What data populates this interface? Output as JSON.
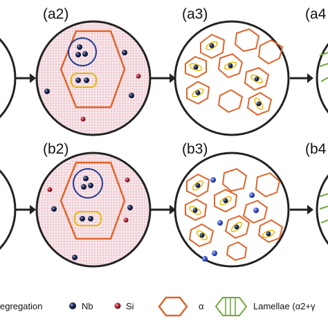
{
  "panels": {
    "a2": "(a2)",
    "a3": "(a3)",
    "a4": "(a4",
    "b2": "(b2)",
    "b3": "(b3)",
    "b4": "(b4"
  },
  "legend": {
    "segregation": "egregation",
    "nb": "Nb",
    "si": "Si",
    "alpha": "α",
    "lamellae": "Lamellae (α2+γ"
  },
  "colors": {
    "grain_boundary": "#e0642a",
    "nb_atom": "#1e2b55",
    "si_atom": "#b2283a",
    "segregation_loop_blue": "#1f3a93",
    "segregation_loop_yellow": "#e6b800",
    "lamellae": "#6fa83a",
    "pink_fill": "#f5dce2",
    "free_nb": "#3a54c8"
  }
}
